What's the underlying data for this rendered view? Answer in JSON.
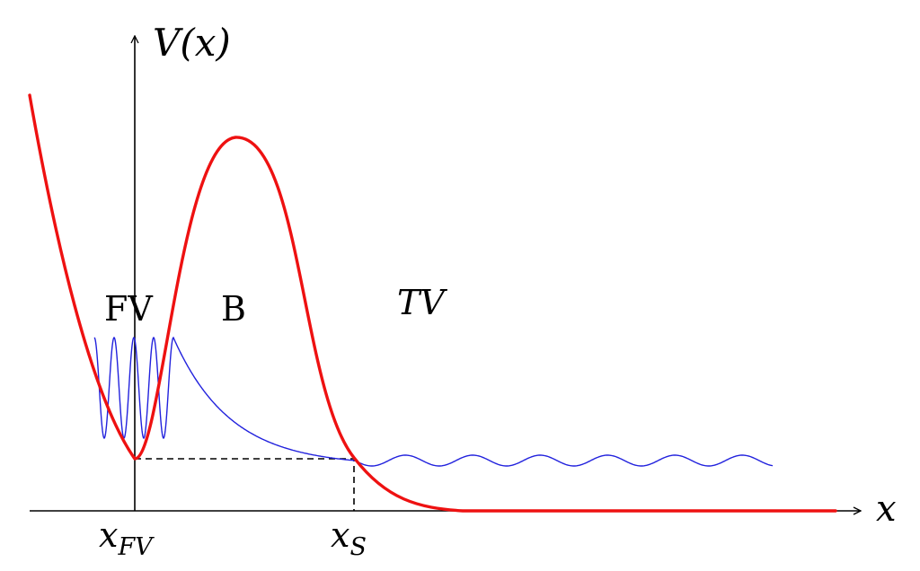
{
  "axes": {
    "y_label": "V(x)",
    "x_label": "x"
  },
  "ticks": {
    "false_vacuum": "x",
    "false_vacuum_sub": "FV",
    "escape_point": "x",
    "escape_point_sub": "S"
  },
  "regions": {
    "false_vacuum": "FV",
    "barrier": "B",
    "true_vacuum": "TV"
  },
  "colors": {
    "potential": "#ee1111",
    "wavefunction": "#2222dd",
    "axes": "#000000",
    "energy_level": "#000000"
  },
  "curves": [
    "potential V(x)",
    "wavefunction"
  ]
}
